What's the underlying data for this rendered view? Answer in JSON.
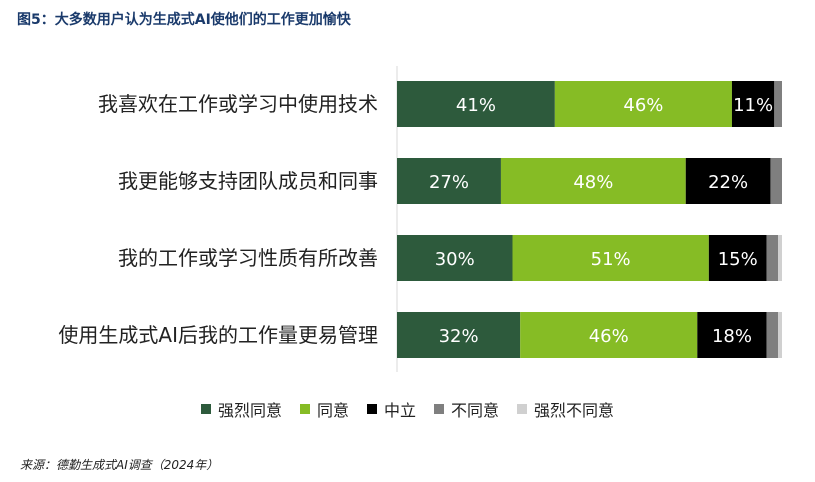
{
  "title": "图5：大多数用户认为生成式AI使他们的工作更加愉快",
  "source": "来源：德勤生成式AI调查（2024年）",
  "chart_data": {
    "type": "bar",
    "orientation": "horizontal",
    "stacked": true,
    "title": "图5：大多数用户认为生成式AI使他们的工作更加愉快",
    "xlim": [
      0,
      100
    ],
    "legend_position": "bottom",
    "grid": false,
    "categories": [
      "我喜欢在工作或学习中使用技术",
      "我更能够支持团队成员和同事",
      "我的工作或学习性质有所改善",
      "使用生成式AI后我的工作量更易管理"
    ],
    "series": [
      {
        "name": "强烈同意",
        "color": "#2d5a3c",
        "label_color": "#ffffff",
        "values": [
          41,
          27,
          30,
          32
        ]
      },
      {
        "name": "同意",
        "color": "#86bc25",
        "label_color": "#ffffff",
        "values": [
          46,
          48,
          51,
          46
        ]
      },
      {
        "name": "中立",
        "color": "#000000",
        "label_color": "#ffffff",
        "values": [
          11,
          22,
          15,
          18
        ]
      },
      {
        "name": "不同意",
        "color": "#7f7f7f",
        "label_color": "#ffffff",
        "values": [
          2,
          3,
          3,
          3
        ]
      },
      {
        "name": "强烈不同意",
        "color": "#d0d0d0",
        "label_color": "#222222",
        "values": [
          0,
          0,
          1,
          1
        ]
      }
    ],
    "data_labels": [
      [
        "41%",
        "46%",
        "11%",
        "",
        ""
      ],
      [
        "27%",
        "48%",
        "22%",
        "",
        ""
      ],
      [
        "30%",
        "51%",
        "15%",
        "",
        ""
      ],
      [
        "32%",
        "46%",
        "18%",
        "",
        ""
      ]
    ]
  }
}
